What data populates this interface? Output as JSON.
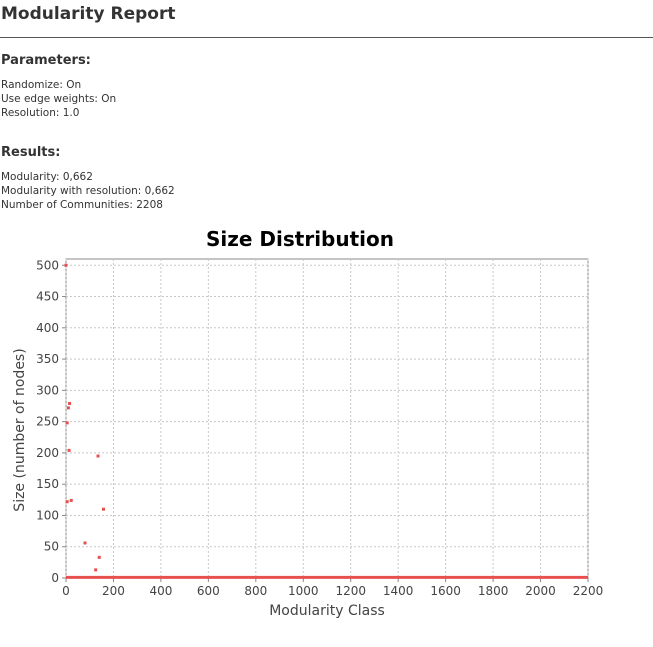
{
  "report": {
    "title": "Modularity Report",
    "parameters_heading": "Parameters:",
    "parameters": [
      "Randomize: On",
      "Use edge weights: On",
      "Resolution: 1.0"
    ],
    "results_heading": "Results:",
    "results": [
      "Modularity: 0,662",
      "Modularity with resolution: 0,662",
      "Number of Communities: 2208"
    ]
  },
  "chart_data": {
    "type": "scatter",
    "title": "Size Distribution",
    "xlabel": "Modularity Class",
    "ylabel": "Size (number of nodes)",
    "xlim": [
      0,
      2200
    ],
    "ylim": [
      0,
      510
    ],
    "xticks": [
      0,
      200,
      400,
      600,
      800,
      1000,
      1200,
      1400,
      1600,
      1800,
      2000,
      2200
    ],
    "yticks": [
      0,
      50,
      100,
      150,
      200,
      250,
      300,
      350,
      400,
      450,
      500
    ],
    "grid": true,
    "color": "#e8504f",
    "baseline": {
      "y": 0,
      "x_range": [
        0,
        2200
      ],
      "note_value": 1
    },
    "points": [
      {
        "x": 0,
        "y": 500
      },
      {
        "x": 5,
        "y": 248
      },
      {
        "x": 10,
        "y": 272
      },
      {
        "x": 15,
        "y": 279
      },
      {
        "x": 13,
        "y": 204
      },
      {
        "x": 5,
        "y": 122
      },
      {
        "x": 22,
        "y": 124
      },
      {
        "x": 135,
        "y": 195
      },
      {
        "x": 158,
        "y": 110
      },
      {
        "x": 80,
        "y": 56
      },
      {
        "x": 140,
        "y": 33
      },
      {
        "x": 125,
        "y": 13
      }
    ]
  }
}
